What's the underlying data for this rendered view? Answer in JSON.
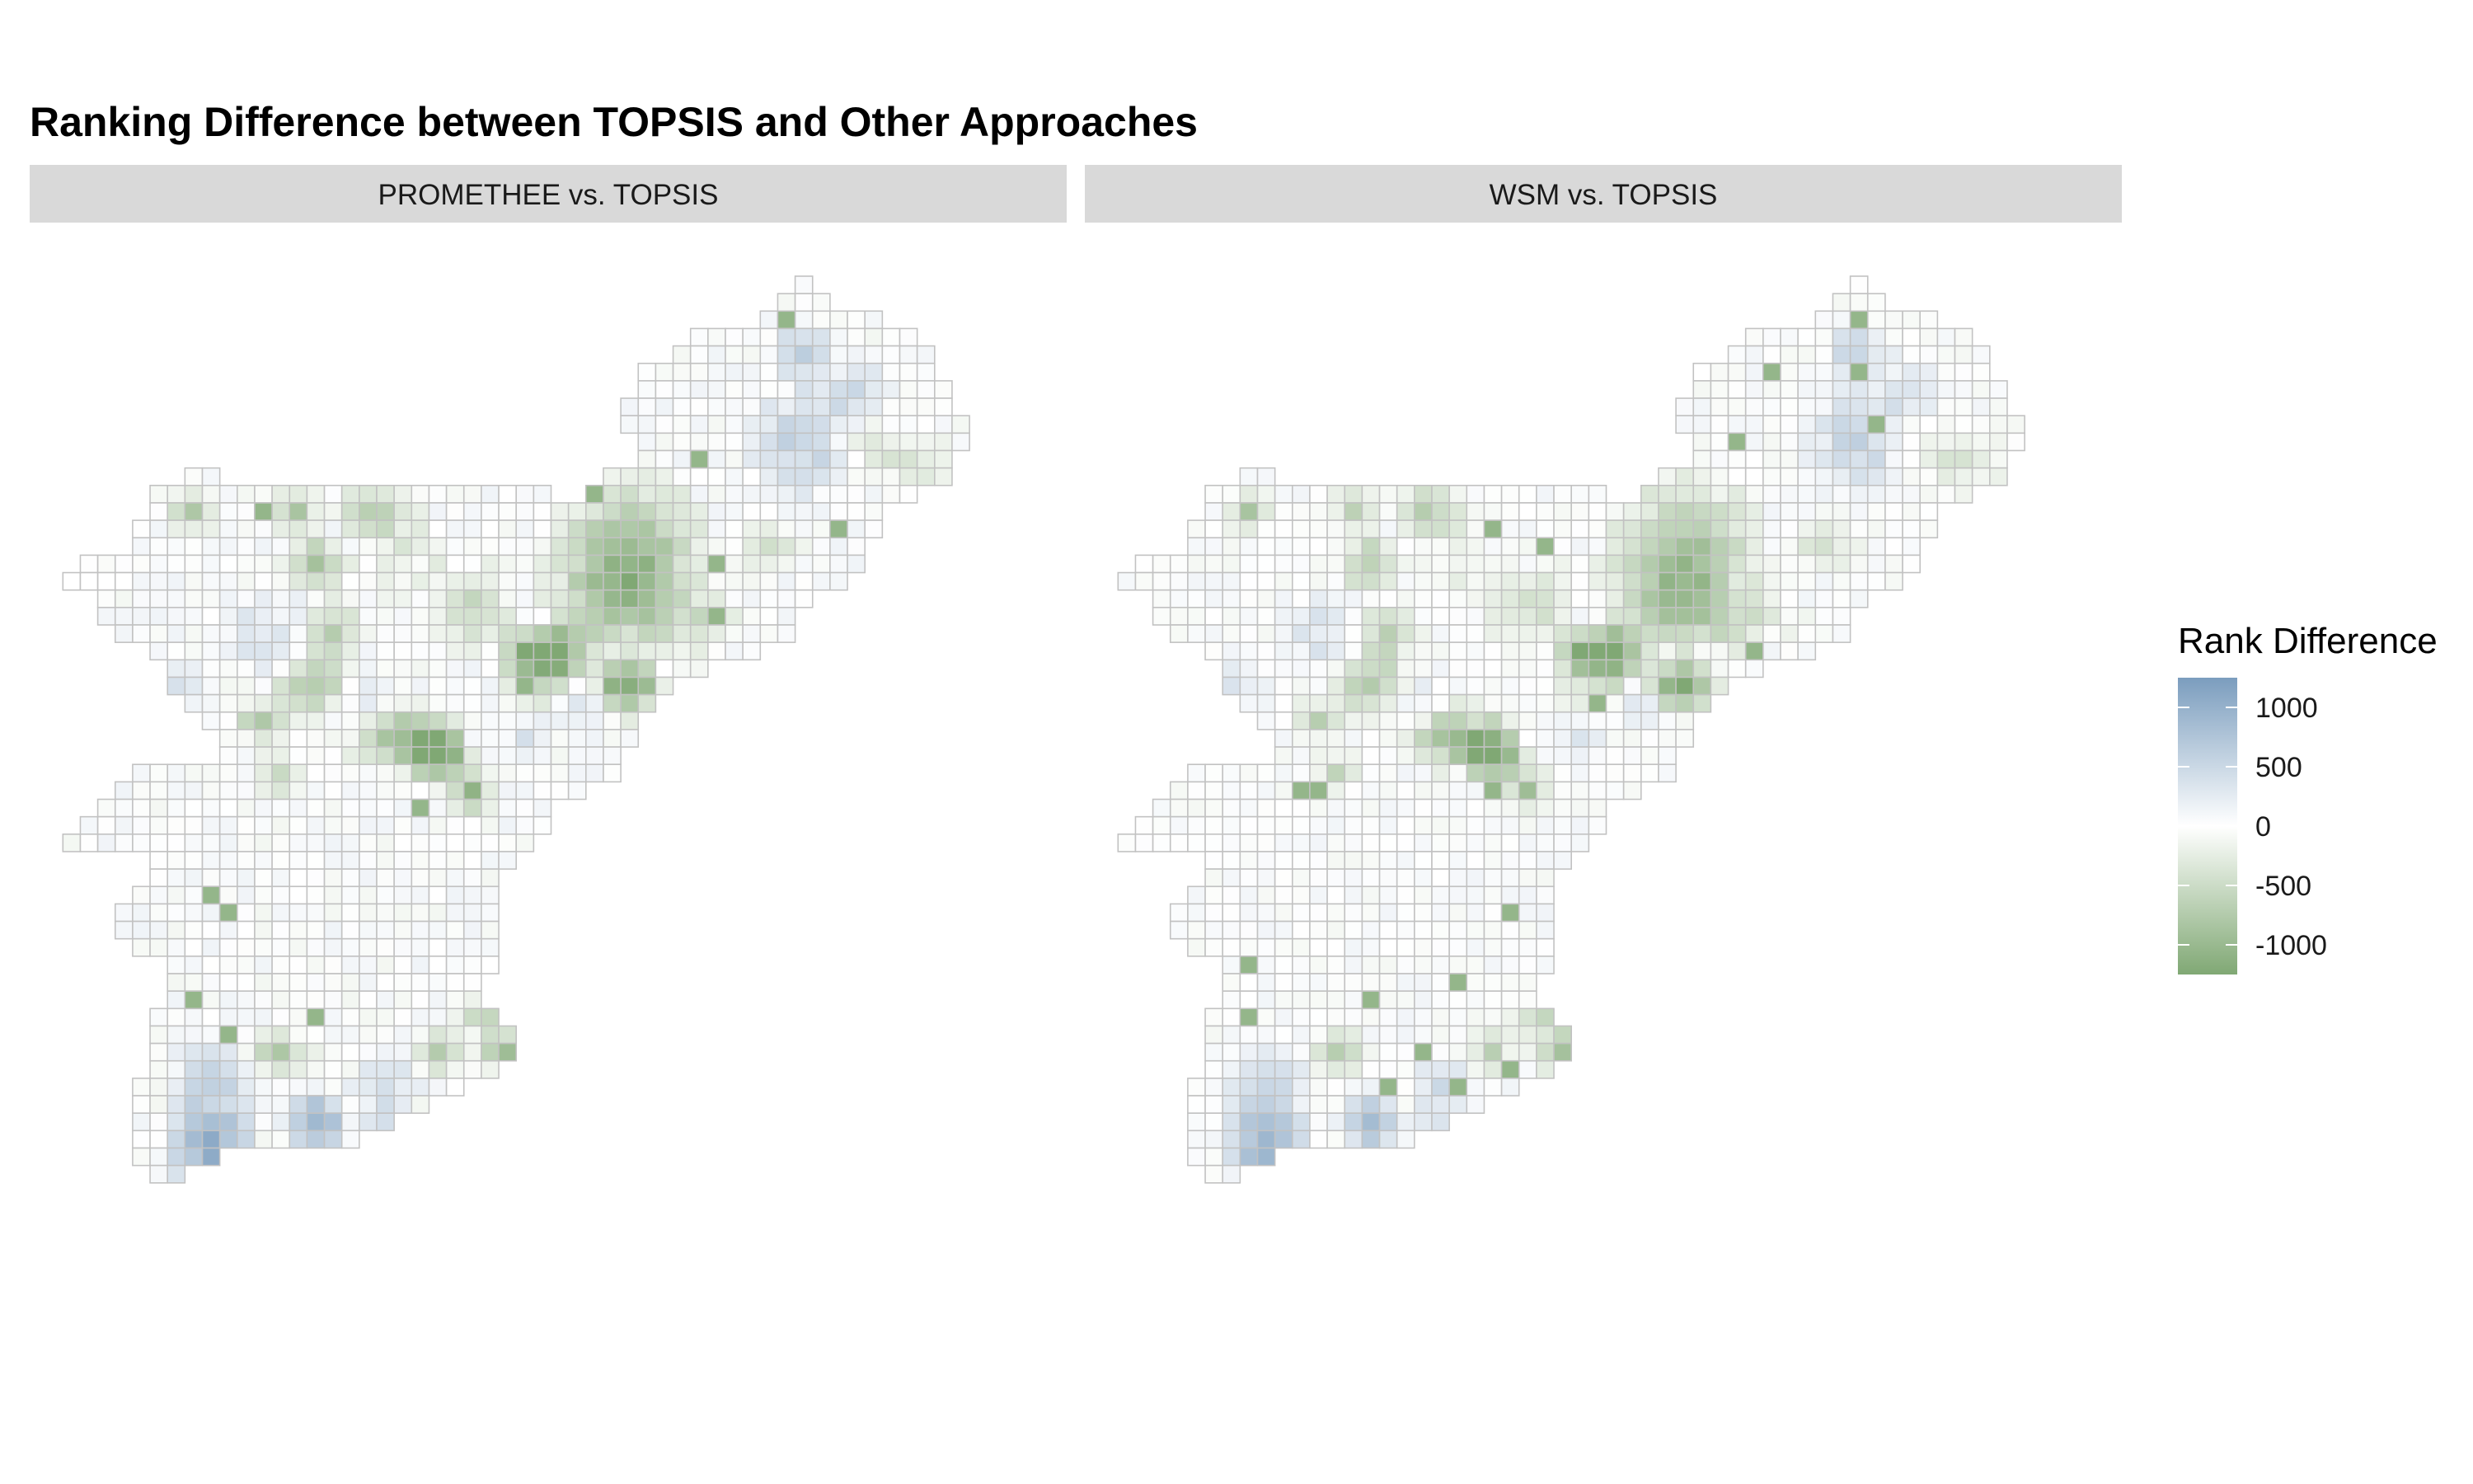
{
  "chart_data": {
    "type": "heatmap",
    "title": "Ranking Difference between TOPSIS and Other Approaches",
    "panels": [
      {
        "label": "PROMETHEE  vs. TOPSIS"
      },
      {
        "label": "WSM  vs. TOPSIS"
      }
    ],
    "legend": {
      "title": "Rank Difference",
      "placement": "right",
      "ticks": [
        1000,
        500,
        0,
        -500,
        -1000
      ],
      "tick_labels": [
        "1000",
        "500",
        "0",
        "-500",
        "-1000"
      ],
      "range": [
        -1250,
        1250
      ],
      "colors": {
        "high": "#7b9dbe",
        "mid": "#ffffff",
        "low": "#80a874"
      }
    },
    "grid_cell_units": 1,
    "grid_style": {
      "cell_border": "#c2c2c2"
    }
  }
}
